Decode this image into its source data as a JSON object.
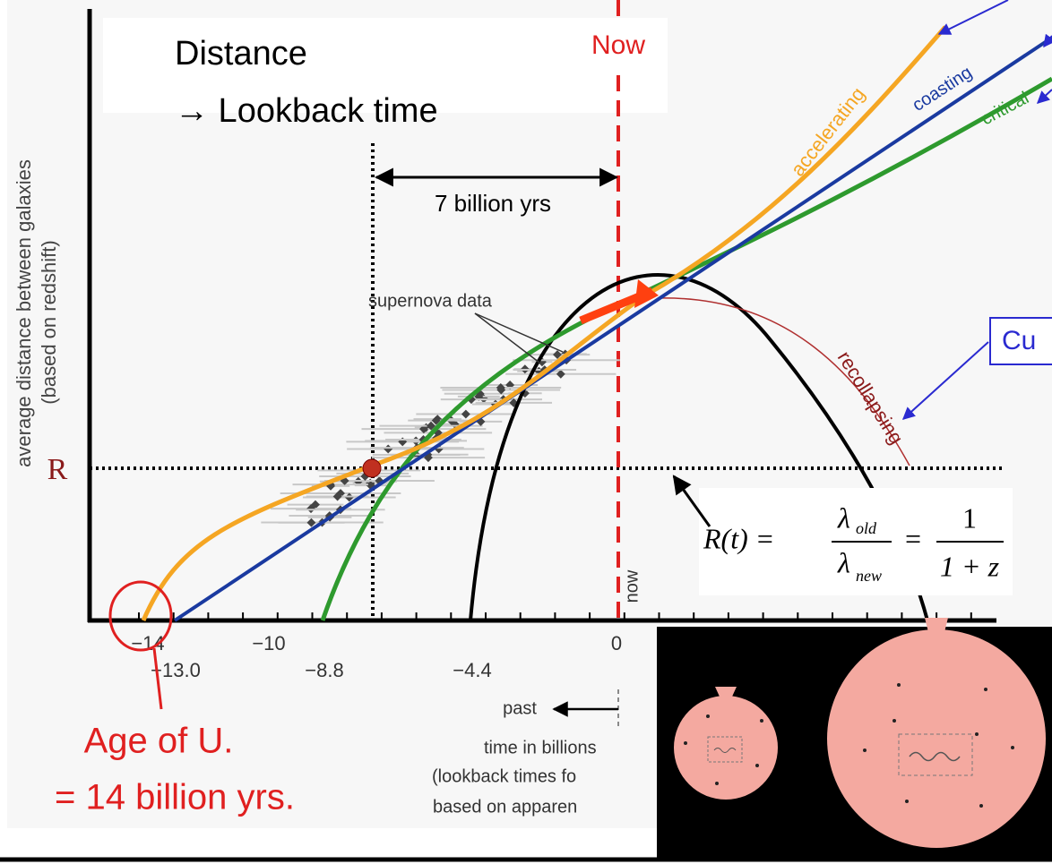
{
  "slide": {
    "box_title": [
      "Distance",
      "→ Lookback time"
    ],
    "now_label": "Now",
    "interval_label": "7 billion yrs",
    "y_axis_label": [
      "average distance between galaxies",
      "(based on redshift)"
    ],
    "r_label": "R",
    "x_tick_labels": [
      "−14",
      "−10",
      "0",
      "−13.0",
      "−8.8",
      "−4.4"
    ],
    "curve_labels": [
      "accelerating",
      "coasting",
      "critical",
      "recollapsing"
    ],
    "supernova_label": "supernova data",
    "now_axis_label": "now",
    "past_label": "past",
    "axis_caption": [
      "time in billions",
      "(lookback times fo",
      "based on apparen"
    ],
    "callout": "Cu",
    "age_label": [
      "Age of U.",
      "= 14 billion yrs."
    ],
    "formula": {
      "lhs": "R(t) =",
      "lambda": "λ",
      "old": "old",
      "new": "new",
      "eq": "=",
      "one": "1",
      "denominator": "1 + z"
    }
  }
}
